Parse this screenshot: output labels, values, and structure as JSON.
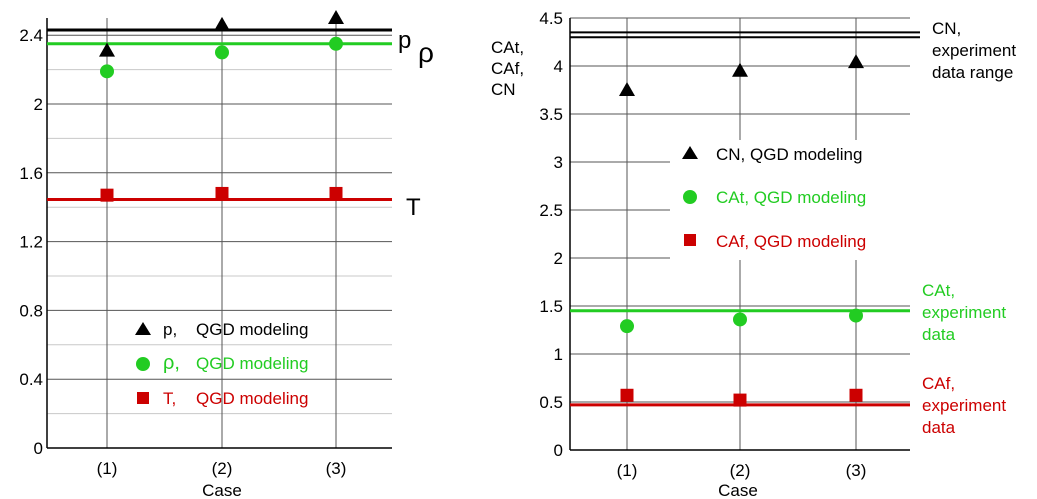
{
  "chart_data": [
    {
      "type": "scatter",
      "xlabel": "Case",
      "ylabel": "",
      "categories": [
        "(1)",
        "(2)",
        "(3)"
      ],
      "ylim": [
        0,
        2.5
      ],
      "y_ticks": [
        "0",
        "0.4",
        "0.8",
        "1.2",
        "1.6",
        "2",
        "2.4"
      ],
      "grid": true,
      "legend_placement": "bottom-center",
      "series": [
        {
          "name": "p,",
          "label_rest": "QGD modeling",
          "marker": "triangle",
          "color": "#000000",
          "values": [
            2.31,
            2.46,
            2.5
          ]
        },
        {
          "name": "ρ,",
          "label_rest": "QGD modeling",
          "marker": "circle",
          "color": "#22cc22",
          "values": [
            2.19,
            2.3,
            2.35
          ]
        },
        {
          "name": "T,",
          "label_rest": "QGD modeling",
          "marker": "square",
          "color": "#cc0000",
          "values": [
            1.47,
            1.48,
            1.48
          ]
        }
      ],
      "reference_lines": [
        {
          "label": "p",
          "value": 2.43,
          "color": "#000000"
        },
        {
          "label": "ρ",
          "value": 2.35,
          "color": "#22cc22"
        },
        {
          "label": "T",
          "value": 1.445,
          "color": "#cc0000"
        }
      ]
    },
    {
      "type": "scatter",
      "xlabel": "Case",
      "ylabel_lines": [
        "CAt,",
        "CAf,",
        "CN"
      ],
      "categories": [
        "(1)",
        "(2)",
        "(3)"
      ],
      "ylim": [
        0,
        4.5
      ],
      "y_ticks": [
        "0",
        "0.5",
        "1",
        "1.5",
        "2",
        "2.5",
        "3",
        "3.5",
        "4",
        "4.5"
      ],
      "grid": true,
      "legend_placement": "center",
      "series": [
        {
          "name": "CN, QGD modeling",
          "marker": "triangle",
          "color": "#000000",
          "values": [
            3.75,
            3.95,
            4.04
          ]
        },
        {
          "name": "CAt, QGD modeling",
          "marker": "circle",
          "color": "#22cc22",
          "values": [
            1.29,
            1.36,
            1.4
          ]
        },
        {
          "name": "CAf,  QGD modeling",
          "marker": "square",
          "color": "#cc0000",
          "values": [
            0.57,
            0.52,
            0.57
          ]
        }
      ],
      "reference_lines": [
        {
          "label_lines": [
            "CN,",
            "experiment",
            "data range"
          ],
          "values": [
            4.3,
            4.35
          ],
          "color": "#000000"
        },
        {
          "label_lines": [
            "CAt,",
            "experiment",
            "data"
          ],
          "values": [
            1.45
          ],
          "color": "#22cc22"
        },
        {
          "label_lines": [
            "CAf,",
            "experiment",
            "data"
          ],
          "values": [
            0.47
          ],
          "color": "#cc0000"
        }
      ]
    }
  ]
}
